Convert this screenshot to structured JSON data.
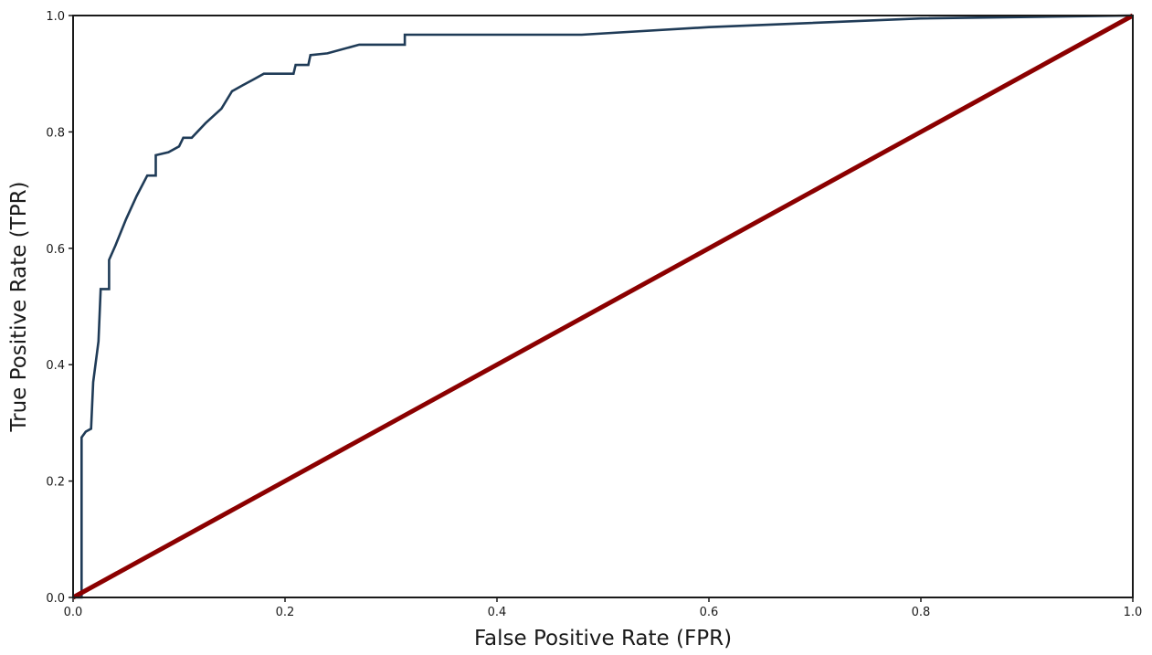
{
  "chart_data": {
    "type": "line",
    "title": "",
    "xlabel": "False Positive Rate (FPR)",
    "ylabel": "True Positive Rate (TPR)",
    "xlim": [
      0,
      1
    ],
    "ylim": [
      0,
      1
    ],
    "x_ticks": [
      "0.0",
      "0.2",
      "0.4",
      "0.6",
      "0.8",
      "1.0"
    ],
    "y_ticks": [
      "0.0",
      "0.2",
      "0.4",
      "0.6",
      "0.8",
      "1.0"
    ],
    "grid": false,
    "legend": "none",
    "series": [
      {
        "color": "#1f3b57",
        "points": [
          [
            0.0,
            0.0
          ],
          [
            0.008,
            0.0
          ],
          [
            0.008,
            0.275
          ],
          [
            0.012,
            0.285
          ],
          [
            0.017,
            0.29
          ],
          [
            0.019,
            0.37
          ],
          [
            0.024,
            0.44
          ],
          [
            0.026,
            0.53
          ],
          [
            0.034,
            0.53
          ],
          [
            0.034,
            0.58
          ],
          [
            0.04,
            0.605
          ],
          [
            0.05,
            0.65
          ],
          [
            0.06,
            0.69
          ],
          [
            0.07,
            0.725
          ],
          [
            0.078,
            0.725
          ],
          [
            0.078,
            0.76
          ],
          [
            0.09,
            0.765
          ],
          [
            0.1,
            0.775
          ],
          [
            0.104,
            0.79
          ],
          [
            0.112,
            0.79
          ],
          [
            0.125,
            0.815
          ],
          [
            0.14,
            0.84
          ],
          [
            0.15,
            0.87
          ],
          [
            0.16,
            0.88
          ],
          [
            0.17,
            0.89
          ],
          [
            0.18,
            0.9
          ],
          [
            0.208,
            0.9
          ],
          [
            0.21,
            0.915
          ],
          [
            0.222,
            0.915
          ],
          [
            0.224,
            0.932
          ],
          [
            0.24,
            0.935
          ],
          [
            0.27,
            0.95
          ],
          [
            0.313,
            0.95
          ],
          [
            0.313,
            0.967
          ],
          [
            0.48,
            0.967
          ],
          [
            0.6,
            0.98
          ],
          [
            0.8,
            0.995
          ],
          [
            1.0,
            1.0
          ]
        ]
      },
      {
        "color": "#8b0000",
        "points": [
          [
            0.0,
            0.0
          ],
          [
            1.0,
            1.0
          ]
        ]
      }
    ]
  }
}
